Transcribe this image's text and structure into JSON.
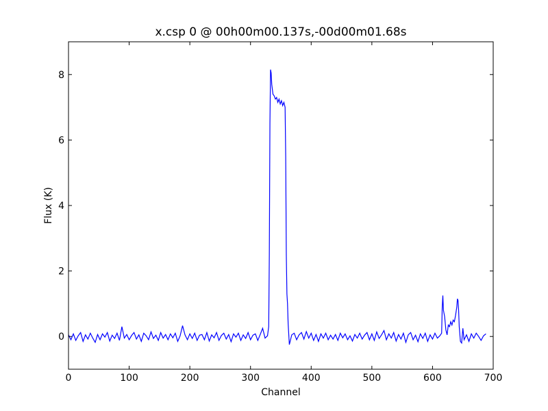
{
  "chart_data": {
    "type": "line",
    "title": "x.csp 0 @ 00h00m00.137s,-00d00m01.68s",
    "x_label": "Channel",
    "y_label": "Flux (K)",
    "xlim": [
      0,
      700
    ],
    "xticks": [
      0,
      100,
      200,
      300,
      400,
      500,
      600,
      700
    ],
    "ylim": [
      -1,
      9
    ],
    "yticks": [
      0,
      2,
      4,
      6,
      8
    ],
    "x": [
      0,
      4,
      8,
      12,
      16,
      20,
      24,
      28,
      32,
      36,
      40,
      44,
      48,
      52,
      56,
      60,
      64,
      68,
      72,
      76,
      80,
      84,
      88,
      92,
      96,
      100,
      104,
      108,
      112,
      116,
      120,
      124,
      128,
      132,
      136,
      140,
      144,
      148,
      152,
      156,
      160,
      164,
      168,
      172,
      176,
      180,
      184,
      188,
      192,
      196,
      200,
      204,
      208,
      212,
      216,
      220,
      224,
      228,
      232,
      236,
      240,
      244,
      248,
      252,
      256,
      260,
      264,
      268,
      272,
      276,
      280,
      284,
      288,
      292,
      296,
      300,
      304,
      308,
      312,
      316,
      320,
      324,
      328,
      330,
      331,
      332,
      333,
      334,
      335,
      337,
      339,
      341,
      343,
      345,
      347,
      349,
      351,
      353,
      355,
      357,
      358,
      359,
      360,
      361,
      362,
      364,
      366,
      368,
      372,
      376,
      380,
      384,
      388,
      392,
      396,
      400,
      404,
      408,
      412,
      416,
      420,
      424,
      428,
      432,
      436,
      440,
      444,
      448,
      452,
      456,
      460,
      464,
      468,
      472,
      476,
      480,
      484,
      488,
      492,
      496,
      500,
      504,
      508,
      512,
      516,
      520,
      524,
      528,
      532,
      536,
      540,
      544,
      548,
      552,
      556,
      560,
      564,
      568,
      572,
      576,
      580,
      584,
      588,
      592,
      596,
      600,
      604,
      608,
      612,
      615,
      616,
      617,
      618,
      620,
      622,
      624,
      626,
      628,
      630,
      632,
      634,
      636,
      638,
      640,
      641,
      642,
      643,
      644,
      646,
      648,
      650,
      652,
      656,
      660,
      664,
      668,
      672,
      676,
      680,
      684,
      688
    ],
    "series": [
      {
        "name": "flux",
        "color": "#0000ff",
        "values": [
          0.05,
          -0.1,
          0.08,
          -0.12,
          0.02,
          0.12,
          -0.15,
          0.05,
          -0.08,
          0.1,
          -0.05,
          -0.18,
          0.06,
          -0.1,
          0.08,
          -0.02,
          0.12,
          -0.14,
          0.04,
          -0.06,
          0.1,
          -0.12,
          0.3,
          -0.05,
          0.06,
          -0.1,
          0.03,
          0.12,
          -0.08,
          0.05,
          -0.15,
          0.1,
          0.02,
          -0.1,
          0.14,
          -0.06,
          0.04,
          -0.12,
          0.12,
          -0.05,
          0.06,
          -0.1,
          0.08,
          -0.04,
          0.1,
          -0.15,
          0.02,
          0.33,
          0.05,
          -0.1,
          0.08,
          -0.06,
          0.1,
          -0.12,
          0.04,
          0.06,
          -0.1,
          0.12,
          -0.14,
          0.05,
          -0.04,
          0.12,
          -0.12,
          0.03,
          0.1,
          -0.08,
          0.06,
          -0.16,
          0.08,
          -0.02,
          0.1,
          -0.12,
          0.05,
          -0.06,
          0.12,
          -0.1,
          0.04,
          0.08,
          -0.12,
          0.06,
          0.25,
          -0.05,
          0.02,
          0.3,
          2.5,
          6.5,
          8.15,
          8.05,
          7.7,
          7.4,
          7.35,
          7.25,
          7.3,
          7.15,
          7.25,
          7.1,
          7.2,
          7.05,
          7.15,
          7.0,
          5.5,
          2.5,
          1.3,
          1.0,
          0.4,
          -0.25,
          -0.1,
          0.05,
          0.1,
          -0.1,
          0.05,
          0.12,
          -0.08,
          0.15,
          -0.05,
          0.1,
          -0.12,
          0.06,
          -0.15,
          0.08,
          -0.05,
          0.1,
          -0.1,
          0.04,
          -0.08,
          0.06,
          -0.12,
          0.1,
          -0.04,
          0.08,
          -0.1,
          0.02,
          -0.14,
          0.06,
          -0.05,
          0.1,
          -0.08,
          0.04,
          0.12,
          -0.1,
          0.08,
          -0.12,
          0.14,
          -0.06,
          0.05,
          0.18,
          -0.1,
          0.08,
          -0.05,
          0.12,
          -0.14,
          0.06,
          -0.08,
          0.1,
          -0.18,
          0.05,
          0.12,
          -0.1,
          0.04,
          -0.16,
          0.08,
          -0.06,
          0.1,
          -0.15,
          0.05,
          -0.08,
          0.1,
          -0.05,
          0.02,
          0.1,
          0.9,
          1.25,
          0.8,
          0.6,
          0.2,
          0.05,
          0.35,
          0.3,
          0.45,
          0.35,
          0.5,
          0.45,
          0.65,
          0.9,
          1.15,
          1.1,
          0.8,
          0.3,
          -0.15,
          -0.2,
          0.25,
          -0.1,
          0.05,
          -0.15,
          0.08,
          -0.05,
          0.1,
          0.0,
          -0.12,
          0.02,
          0.08
        ]
      }
    ]
  }
}
